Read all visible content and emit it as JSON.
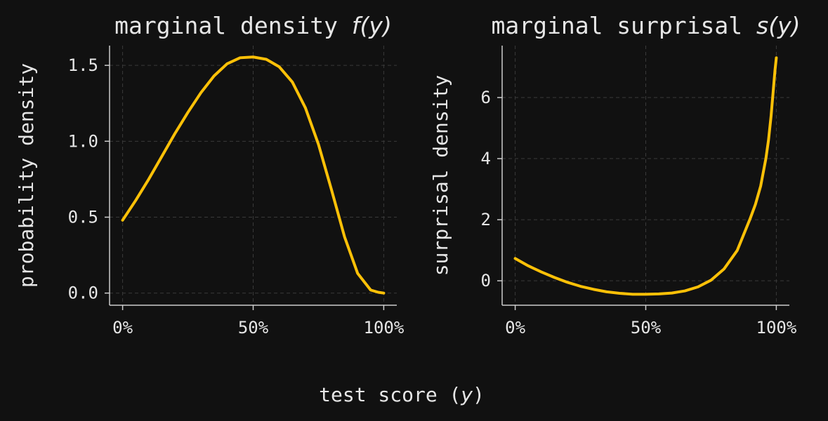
{
  "colors": {
    "background": "#111111",
    "line": "#FFC107",
    "text": "#E6E6E6",
    "axis": "#CCCCCC",
    "grid": "#3A3A3A"
  },
  "figure": {
    "xlabel_prefix": "test score (",
    "xlabel_var": "y",
    "xlabel_suffix": ")"
  },
  "chart_data": [
    {
      "type": "line",
      "title_prefix": "marginal density ",
      "title_func": "f",
      "title_open": "(",
      "title_var": "y",
      "title_close": ")",
      "ylabel": "probability density",
      "xlim": [
        -0.05,
        1.05
      ],
      "ylim": [
        -0.08,
        1.63
      ],
      "xticks": [
        0,
        0.5,
        1
      ],
      "xtick_labels": [
        "0%",
        "50%",
        "100%"
      ],
      "yticks": [
        0,
        0.5,
        1,
        1.5
      ],
      "ytick_labels": [
        "0.0",
        "0.5",
        "1.0",
        "1.5"
      ],
      "grid": true,
      "x": [
        0,
        0.05,
        0.1,
        0.15,
        0.2,
        0.25,
        0.3,
        0.35,
        0.4,
        0.45,
        0.5,
        0.55,
        0.6,
        0.65,
        0.7,
        0.75,
        0.8,
        0.85,
        0.9,
        0.95,
        0.98,
        1.0
      ],
      "y": [
        0.48,
        0.61,
        0.75,
        0.9,
        1.05,
        1.19,
        1.32,
        1.43,
        1.51,
        1.55,
        1.555,
        1.54,
        1.49,
        1.39,
        1.22,
        0.98,
        0.68,
        0.37,
        0.13,
        0.02,
        0.005,
        0.0
      ]
    },
    {
      "type": "line",
      "title_prefix": "marginal surprisal ",
      "title_func": "s",
      "title_open": "(",
      "title_var": "y",
      "title_close": ")",
      "ylabel": "surprisal density",
      "xlim": [
        -0.05,
        1.05
      ],
      "ylim": [
        -0.8,
        7.7
      ],
      "xticks": [
        0,
        0.5,
        1
      ],
      "xtick_labels": [
        "0%",
        "50%",
        "100%"
      ],
      "yticks": [
        0,
        2,
        4,
        6
      ],
      "ytick_labels": [
        "0",
        "2",
        "4",
        "6"
      ],
      "grid": true,
      "x": [
        0,
        0.05,
        0.1,
        0.15,
        0.2,
        0.25,
        0.3,
        0.35,
        0.4,
        0.45,
        0.5,
        0.55,
        0.6,
        0.65,
        0.7,
        0.75,
        0.8,
        0.85,
        0.9,
        0.92,
        0.94,
        0.96,
        0.97,
        0.98,
        0.99,
        0.995,
        1.0
      ],
      "y": [
        0.73,
        0.49,
        0.29,
        0.11,
        -0.05,
        -0.18,
        -0.28,
        -0.36,
        -0.41,
        -0.44,
        -0.44,
        -0.43,
        -0.4,
        -0.33,
        -0.2,
        0.02,
        0.39,
        0.99,
        2.04,
        2.5,
        3.1,
        4.0,
        4.6,
        5.4,
        6.4,
        6.9,
        7.3
      ]
    }
  ]
}
